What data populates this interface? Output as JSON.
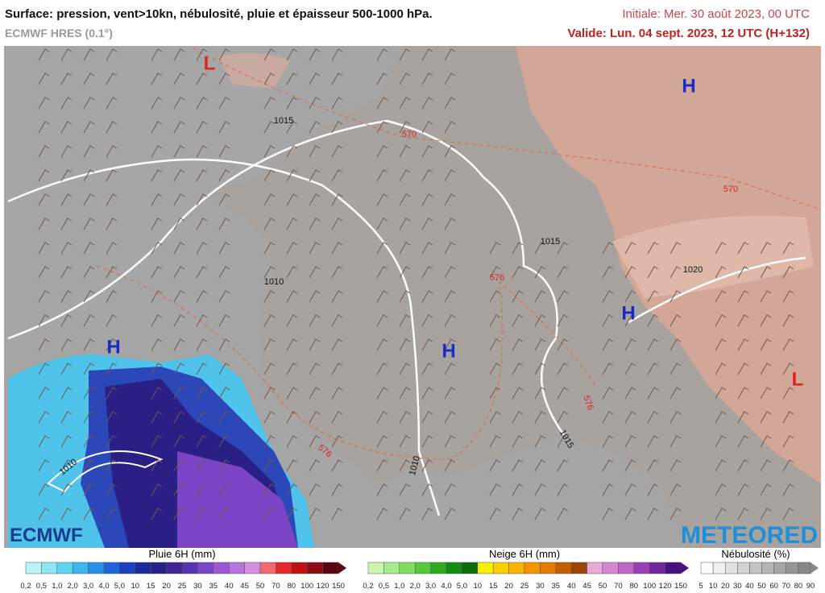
{
  "header": {
    "title": "Surface: pression, vent>10kn, nébulosité, pluie et épaisseur 500-1000 hPa.",
    "model": "ECMWF HRES (0.1°)",
    "initial": "Initiale: Mer. 30 août 2023, 00 UTC",
    "valid": "Valide: Lun. 04 sept. 2023, 12 UTC (H+132)"
  },
  "map": {
    "centers": [
      "L",
      "H",
      "H",
      "H",
      "H",
      "L"
    ],
    "isobars": [
      "1015",
      "1015",
      "1010",
      "1020",
      "1015",
      "1010",
      "1010"
    ],
    "thickness": [
      "570",
      "570",
      "576",
      "576",
      "576"
    ]
  },
  "logos": {
    "left": "ECMWF",
    "right": "METEORED"
  },
  "legend": {
    "rain": {
      "title": "Pluie 6H (mm)",
      "labels": [
        "0,2",
        "0,5",
        "1,0",
        "2,0",
        "3,0",
        "4,0",
        "5,0",
        "10",
        "15",
        "20",
        "25",
        "30",
        "35",
        "40",
        "45",
        "50",
        "70",
        "80",
        "100",
        "120",
        "150"
      ],
      "colors": [
        "#b9f2f7",
        "#8ee6f2",
        "#5fd3f0",
        "#3bb6ee",
        "#2a90e8",
        "#1f63d8",
        "#1a3fbf",
        "#1d2a9a",
        "#2a1f84",
        "#3d2596",
        "#5a33b0",
        "#7a44c4",
        "#9b58d2",
        "#b873dc",
        "#d58fe0",
        "#f06a6a",
        "#e22a2a",
        "#c01010",
        "#8e0a14",
        "#5a0610"
      ]
    },
    "snow": {
      "title": "Neige 6H (mm)",
      "labels": [
        "0,2",
        "0,5",
        "1,0",
        "2,0",
        "3,0",
        "4,0",
        "5,0",
        "10",
        "15",
        "20",
        "25",
        "30",
        "35",
        "40",
        "45",
        "50",
        "70",
        "80",
        "100",
        "120",
        "150"
      ],
      "colors": [
        "#c9f5b0",
        "#a6ec8a",
        "#7fdd62",
        "#55c83c",
        "#2faa22",
        "#178a12",
        "#0c6b0a",
        "#f6f000",
        "#f8d200",
        "#f7b400",
        "#f29600",
        "#e07a00",
        "#c05e00",
        "#9a4600",
        "#e8a8d8",
        "#d786d0",
        "#c064c6",
        "#9a40b4",
        "#72259c",
        "#4a1080"
      ]
    },
    "cloud": {
      "title": "Nébulosité (%)",
      "labels": [
        "5",
        "10",
        "20",
        "30",
        "40",
        "50",
        "60",
        "70",
        "80",
        "90"
      ],
      "colors": [
        "#ffffff",
        "#f0f0f0",
        "#e1e1e1",
        "#d2d2d2",
        "#c3c3c3",
        "#b4b4b4",
        "#a5a5a5",
        "#969696",
        "#878787"
      ]
    }
  }
}
